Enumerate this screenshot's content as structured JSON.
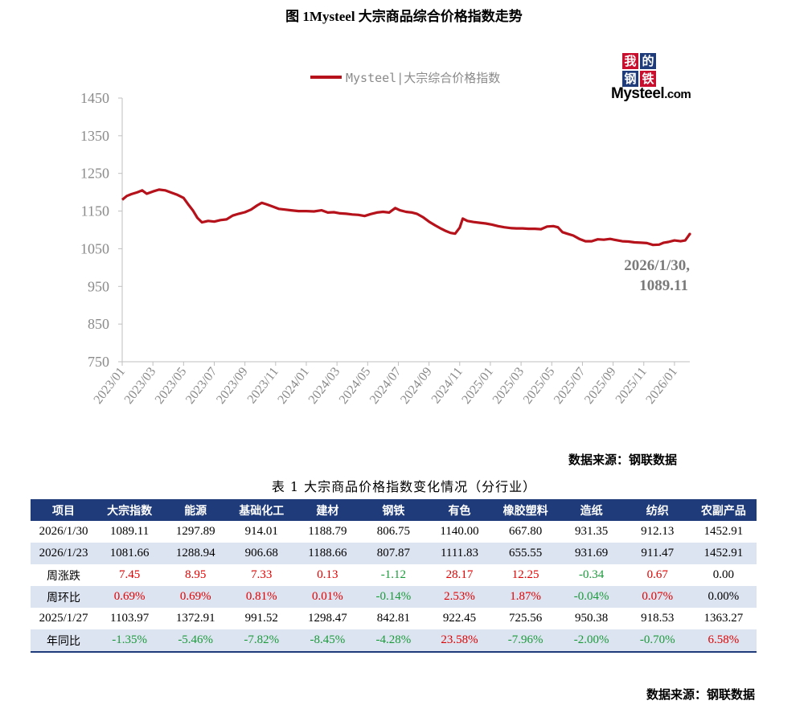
{
  "figure_title": "图 1Mysteel 大宗商品综合价格指数走势",
  "logo": {
    "chars": [
      "我",
      "的",
      "钢",
      "铁"
    ],
    "brand": "Mysteel",
    "domain": ".com",
    "colors": {
      "wo": "#c8102e",
      "de": "#1f3b7a",
      "gang": "#1f3b7a",
      "tie": "#c8102e"
    }
  },
  "chart_data": {
    "type": "line",
    "series": [
      {
        "name": "Mysteel|大宗综合价格指数",
        "color": "#b5121b"
      }
    ],
    "x_ticks": [
      "2023/01",
      "2023/03",
      "2023/05",
      "2023/07",
      "2023/09",
      "2023/11",
      "2024/01",
      "2024/03",
      "2024/05",
      "2024/07",
      "2024/09",
      "2024/11",
      "2025/01",
      "2025/03",
      "2025/05",
      "2025/07",
      "2025/09",
      "2025/11",
      "2026/01"
    ],
    "y_ticks": [
      "1450",
      "1350",
      "1250",
      "1150",
      "1050",
      "950",
      "850",
      "750"
    ],
    "ylim": [
      750,
      1450
    ],
    "xlim": [
      0,
      37
    ],
    "points": [
      [
        0.0,
        1180
      ],
      [
        0.3,
        1190
      ],
      [
        0.6,
        1195
      ],
      [
        1.0,
        1200
      ],
      [
        1.3,
        1205
      ],
      [
        1.6,
        1196
      ],
      [
        2.0,
        1202
      ],
      [
        2.4,
        1207
      ],
      [
        2.8,
        1205
      ],
      [
        3.2,
        1199
      ],
      [
        3.6,
        1193
      ],
      [
        4.0,
        1185
      ],
      [
        4.3,
        1168
      ],
      [
        4.6,
        1152
      ],
      [
        4.9,
        1132
      ],
      [
        5.2,
        1120
      ],
      [
        5.6,
        1124
      ],
      [
        6.0,
        1122
      ],
      [
        6.4,
        1126
      ],
      [
        6.8,
        1128
      ],
      [
        7.2,
        1138
      ],
      [
        7.6,
        1143
      ],
      [
        8.0,
        1147
      ],
      [
        8.4,
        1154
      ],
      [
        8.8,
        1165
      ],
      [
        9.1,
        1172
      ],
      [
        9.4,
        1168
      ],
      [
        9.8,
        1162
      ],
      [
        10.2,
        1156
      ],
      [
        10.6,
        1154
      ],
      [
        11.0,
        1152
      ],
      [
        11.5,
        1150
      ],
      [
        12.0,
        1150
      ],
      [
        12.5,
        1149
      ],
      [
        13.0,
        1152
      ],
      [
        13.4,
        1146
      ],
      [
        13.8,
        1147
      ],
      [
        14.2,
        1144
      ],
      [
        14.6,
        1143
      ],
      [
        15.0,
        1141
      ],
      [
        15.4,
        1140
      ],
      [
        15.8,
        1137
      ],
      [
        16.2,
        1142
      ],
      [
        16.6,
        1146
      ],
      [
        17.0,
        1148
      ],
      [
        17.4,
        1146
      ],
      [
        17.8,
        1158
      ],
      [
        18.1,
        1152
      ],
      [
        18.5,
        1148
      ],
      [
        18.9,
        1146
      ],
      [
        19.2,
        1143
      ],
      [
        19.6,
        1134
      ],
      [
        20.0,
        1122
      ],
      [
        20.4,
        1112
      ],
      [
        20.8,
        1103
      ],
      [
        21.1,
        1097
      ],
      [
        21.4,
        1092
      ],
      [
        21.7,
        1090
      ],
      [
        22.0,
        1106
      ],
      [
        22.2,
        1130
      ],
      [
        22.5,
        1124
      ],
      [
        22.9,
        1121
      ],
      [
        23.3,
        1119
      ],
      [
        23.7,
        1117
      ],
      [
        24.1,
        1114
      ],
      [
        24.5,
        1110
      ],
      [
        24.9,
        1107
      ],
      [
        25.3,
        1105
      ],
      [
        25.7,
        1104
      ],
      [
        26.1,
        1104
      ],
      [
        26.5,
        1103
      ],
      [
        26.9,
        1103
      ],
      [
        27.3,
        1102
      ],
      [
        27.7,
        1109
      ],
      [
        28.1,
        1110
      ],
      [
        28.4,
        1107
      ],
      [
        28.7,
        1094
      ],
      [
        29.0,
        1090
      ],
      [
        29.4,
        1085
      ],
      [
        29.8,
        1076
      ],
      [
        30.2,
        1070
      ],
      [
        30.6,
        1070
      ],
      [
        31.0,
        1075
      ],
      [
        31.4,
        1074
      ],
      [
        31.8,
        1076
      ],
      [
        32.2,
        1073
      ],
      [
        32.6,
        1070
      ],
      [
        33.0,
        1069
      ],
      [
        33.4,
        1067
      ],
      [
        33.8,
        1066
      ],
      [
        34.2,
        1065
      ],
      [
        34.6,
        1060
      ],
      [
        35.0,
        1061
      ],
      [
        35.3,
        1066
      ],
      [
        35.6,
        1068
      ],
      [
        36.0,
        1072
      ],
      [
        36.4,
        1070
      ],
      [
        36.7,
        1072
      ],
      [
        37.0,
        1089.11
      ]
    ]
  },
  "annotation": {
    "line1": "2026/1/30,",
    "line2": "1089.11"
  },
  "source_label_1": "数据来源：钢联数据",
  "table_title": "表 1 大宗商品价格指数变化情况（分行业）",
  "table": {
    "headers": [
      "项目",
      "大宗指数",
      "能源",
      "基础化工",
      "建材",
      "钢铁",
      "有色",
      "橡胶塑料",
      "造纸",
      "纺织",
      "农副产品"
    ],
    "rows": [
      {
        "shade": false,
        "cells": [
          "2026/1/30",
          "1089.11",
          "1297.89",
          "914.01",
          "1188.79",
          "806.75",
          "1140.00",
          "667.80",
          "931.35",
          "912.13",
          "1452.91"
        ],
        "signed": false
      },
      {
        "shade": true,
        "cells": [
          "2026/1/23",
          "1081.66",
          "1288.94",
          "906.68",
          "1188.66",
          "807.87",
          "1111.83",
          "655.55",
          "931.69",
          "911.47",
          "1452.91"
        ],
        "signed": false
      },
      {
        "shade": false,
        "cells": [
          "周涨跌",
          "7.45",
          "8.95",
          "7.33",
          "0.13",
          "-1.12",
          "28.17",
          "12.25",
          "-0.34",
          "0.67",
          "0.00"
        ],
        "signed": true
      },
      {
        "shade": true,
        "cells": [
          "周环比",
          "0.69%",
          "0.69%",
          "0.81%",
          "0.01%",
          "-0.14%",
          "2.53%",
          "1.87%",
          "-0.04%",
          "0.07%",
          "0.00%"
        ],
        "signed": true
      },
      {
        "shade": false,
        "cells": [
          "2025/1/27",
          "1103.97",
          "1372.91",
          "991.52",
          "1298.47",
          "842.81",
          "922.45",
          "725.56",
          "950.38",
          "918.53",
          "1363.27"
        ],
        "signed": false
      },
      {
        "shade": true,
        "cells": [
          "年同比",
          "-1.35%",
          "-5.46%",
          "-7.82%",
          "-8.45%",
          "-4.28%",
          "23.58%",
          "-7.96%",
          "-2.00%",
          "-0.70%",
          "6.58%"
        ],
        "signed": true
      }
    ]
  },
  "source_label_2": "数据来源：钢联数据"
}
